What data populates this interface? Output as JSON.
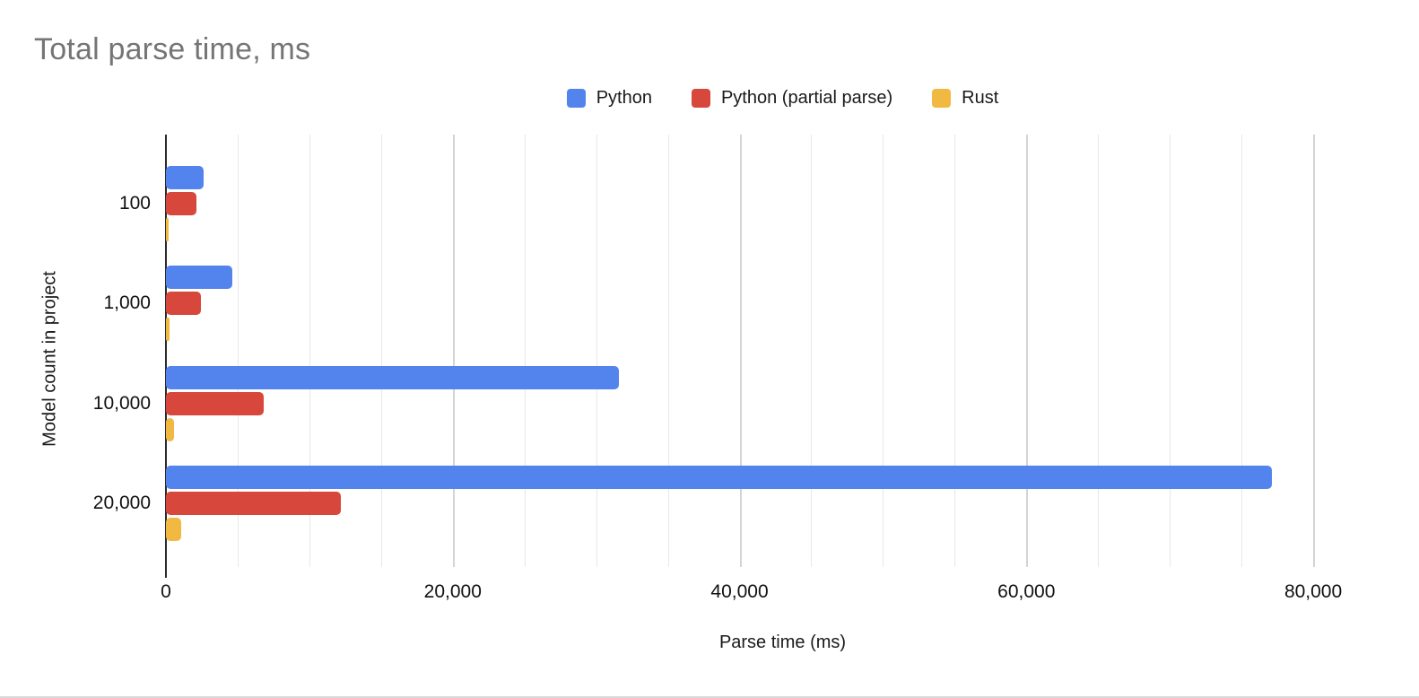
{
  "chart_data": {
    "type": "bar",
    "orientation": "horizontal",
    "title": "Total parse time, ms",
    "xlabel": "Parse time (ms)",
    "ylabel": "Model count in project",
    "categories": [
      "100",
      "1,000",
      "10,000",
      "20,000"
    ],
    "series": [
      {
        "name": "Python",
        "color": "#5383ec",
        "values": [
          2600,
          4600,
          31600,
          77100
        ]
      },
      {
        "name": "Python (partial parse)",
        "color": "#d8473b",
        "values": [
          2100,
          2450,
          6800,
          12200
        ]
      },
      {
        "name": "Rust",
        "color": "#f1b941",
        "values": [
          150,
          250,
          550,
          1050
        ]
      }
    ],
    "xlim": [
      0,
      86000
    ],
    "gridline_step": 5000,
    "major_gridline_step": 20000,
    "x_ticks": [
      {
        "value": 0,
        "label": "0"
      },
      {
        "value": 20000,
        "label": "20,000"
      },
      {
        "value": 40000,
        "label": "40,000"
      },
      {
        "value": 60000,
        "label": "60,000"
      },
      {
        "value": 80000,
        "label": "80,000"
      }
    ],
    "grid": true,
    "legend_position": "top"
  },
  "colors": {
    "title_text": "#757575",
    "axis_text": "#111111",
    "gridline_minor": "#e8e8e8",
    "gridline_major": "#d4d4d4",
    "axis_line": "#2b2b2b",
    "background": "#ffffff"
  }
}
